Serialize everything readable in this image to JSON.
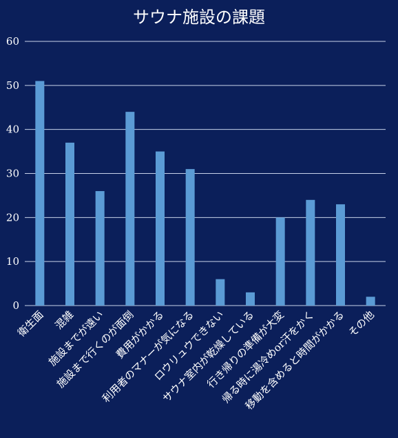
{
  "chart_data": {
    "type": "bar",
    "title": "サウナ施設の課題",
    "xlabel": "",
    "ylabel": "",
    "ylim": [
      0,
      60
    ],
    "yticks": [
      0,
      10,
      20,
      30,
      40,
      50,
      60
    ],
    "grid": true,
    "legend": "none",
    "categories": [
      "衛生面",
      "混雑",
      "施設までが遠い",
      "施設まで行くのが面倒",
      "費用がかかる",
      "利用者のマナーが気になる",
      "ロウリュウできない",
      "サウナ室内が乾燥している",
      "行き帰りの準備が大変",
      "帰る時に湯冷めor汗をかく",
      "移動を含めると時間がかかる",
      "その他"
    ],
    "values": [
      51,
      37,
      26,
      44,
      35,
      31,
      6,
      3,
      20,
      24,
      23,
      2
    ],
    "colors": {
      "background": "#0b1f5a",
      "bar": "#5b9bd5",
      "grid": "#c9d3ea",
      "text": "#ffffff"
    }
  }
}
